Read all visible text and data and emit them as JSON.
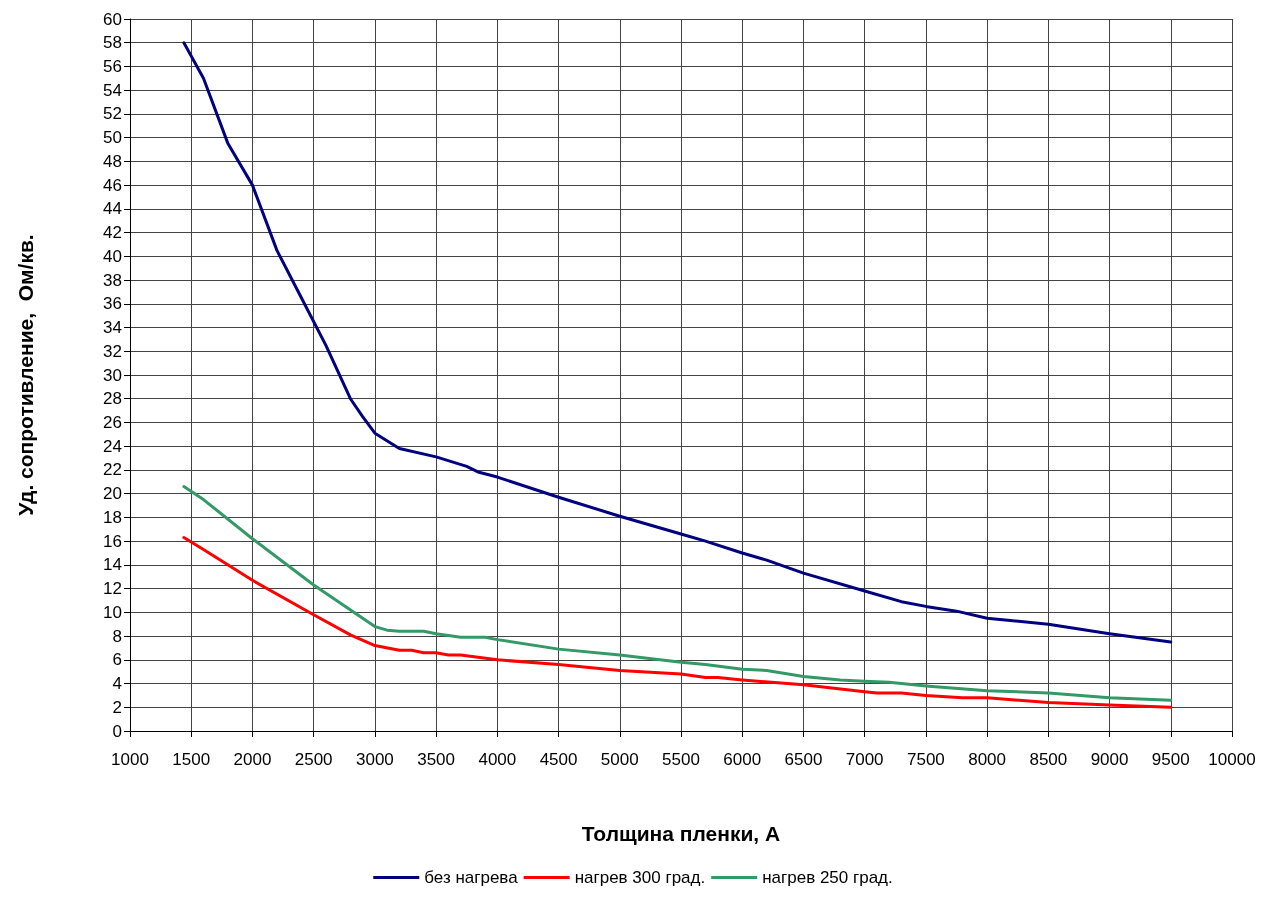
{
  "chart_data": {
    "type": "line",
    "xlabel": "Толщина пленки, А",
    "ylabel": "Уд. сопротивление,  Ом/кв.",
    "xlim": [
      1000,
      10000
    ],
    "xticks": [
      1000,
      1500,
      2000,
      2500,
      3000,
      3500,
      4000,
      4500,
      5000,
      5500,
      6000,
      6500,
      7000,
      7500,
      8000,
      8500,
      9000,
      9500,
      10000
    ],
    "ylim": [
      0,
      60
    ],
    "yticks": [
      0,
      2,
      4,
      6,
      8,
      10,
      12,
      14,
      16,
      18,
      20,
      22,
      24,
      26,
      28,
      30,
      32,
      34,
      36,
      38,
      40,
      42,
      44,
      46,
      48,
      50,
      52,
      54,
      56,
      58,
      60
    ],
    "grid": true,
    "legend": "bottom",
    "marker": "none",
    "line_style": "solid",
    "series": [
      {
        "name": "без нагрева",
        "color": "#000080",
        "x": [
          1440,
          1600,
          1800,
          2000,
          2200,
          2450,
          2600,
          2800,
          2900,
          3000,
          3200,
          3500,
          3750,
          3850,
          4000,
          4500,
          5000,
          5500,
          5700,
          6000,
          6200,
          6500,
          7000,
          7300,
          7500,
          7750,
          8000,
          8500,
          9000,
          9500
        ],
        "values": [
          58,
          55,
          49.5,
          46,
          40.5,
          35.5,
          32.5,
          28,
          26.5,
          25.1,
          23.8,
          23.1,
          22.3,
          21.8,
          21.4,
          19.7,
          18.1,
          16.6,
          16,
          15,
          14.4,
          13.3,
          11.8,
          10.9,
          10.5,
          10.1,
          9.5,
          9,
          8.2,
          7.5
        ]
      },
      {
        "name": "нагрев 300 град.",
        "color": "#ff0000",
        "x": [
          1440,
          1600,
          2000,
          2500,
          2800,
          3000,
          3200,
          3300,
          3400,
          3500,
          3600,
          3700,
          4000,
          4500,
          5000,
          5500,
          5700,
          5800,
          6000,
          6500,
          7000,
          7100,
          7300,
          7500,
          7800,
          8000,
          8500,
          9000,
          9500
        ],
        "values": [
          16.3,
          15.3,
          12.7,
          9.8,
          8.1,
          7.2,
          6.8,
          6.8,
          6.6,
          6.6,
          6.4,
          6.4,
          6,
          5.6,
          5.1,
          4.8,
          4.5,
          4.5,
          4.3,
          3.9,
          3.3,
          3.2,
          3.2,
          3,
          2.8,
          2.8,
          2.4,
          2.2,
          2
        ]
      },
      {
        "name": "нагрев 250 град.",
        "color": "#339966",
        "x": [
          1440,
          1600,
          2000,
          2500,
          3000,
          3100,
          3200,
          3400,
          3500,
          3700,
          3900,
          4000,
          4500,
          5000,
          5500,
          5700,
          6000,
          6200,
          6500,
          6800,
          7000,
          7200,
          7500,
          8000,
          8500,
          9000,
          9500
        ],
        "values": [
          20.6,
          19.5,
          16.2,
          12.3,
          8.8,
          8.5,
          8.4,
          8.4,
          8.2,
          7.9,
          7.9,
          7.7,
          6.9,
          6.4,
          5.8,
          5.6,
          5.2,
          5.1,
          4.6,
          4.3,
          4.2,
          4.1,
          3.8,
          3.4,
          3.2,
          2.8,
          2.6
        ]
      }
    ]
  }
}
